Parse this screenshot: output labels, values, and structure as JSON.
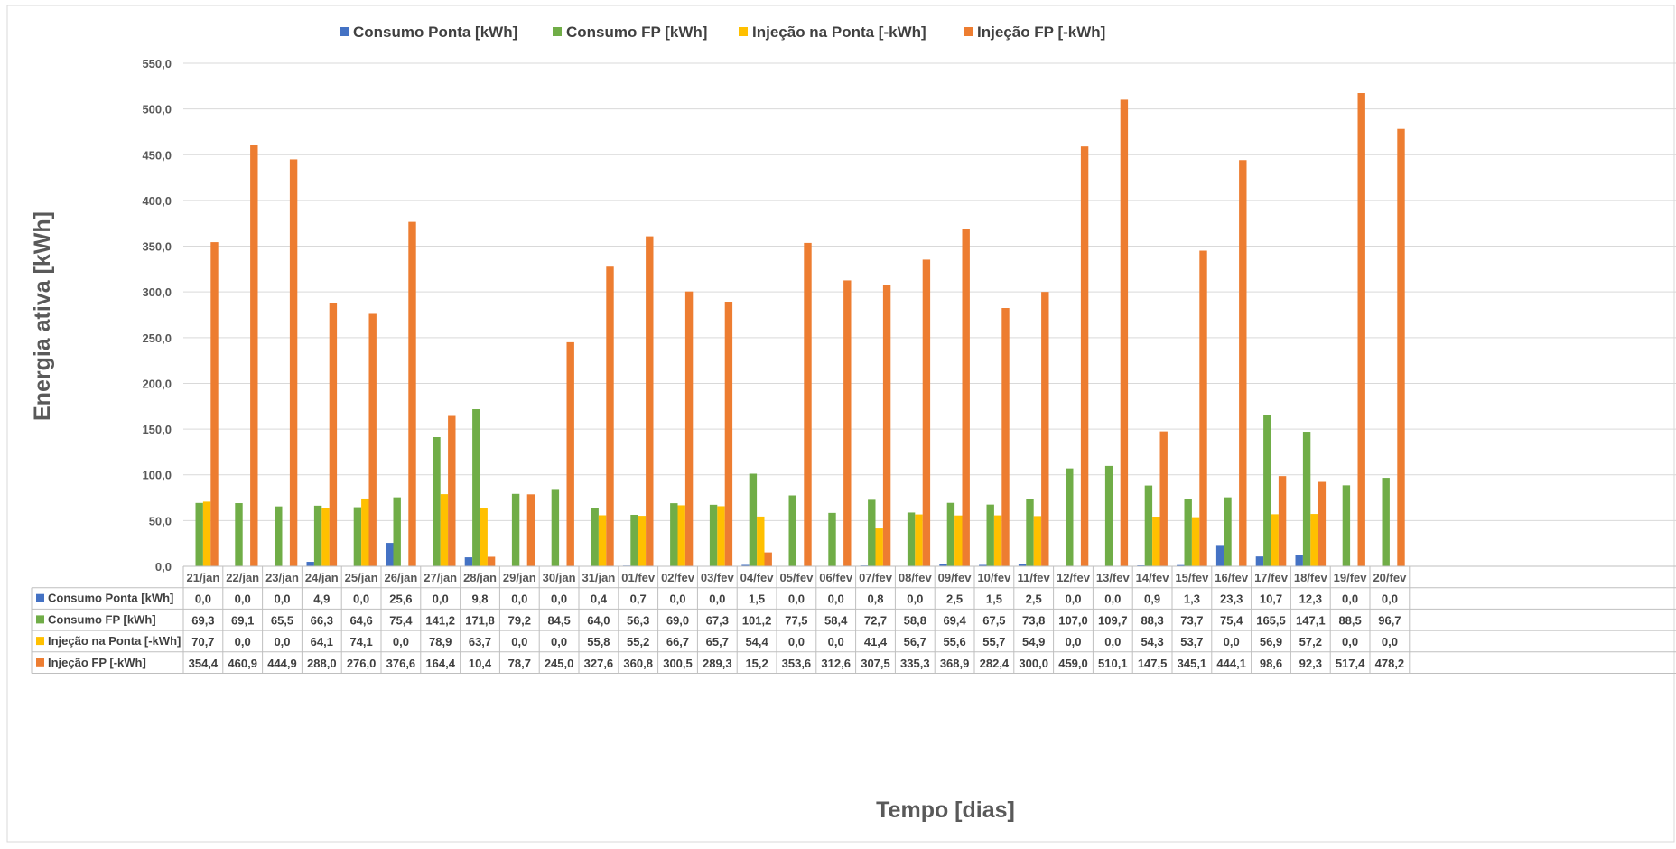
{
  "chart_data": {
    "type": "bar",
    "title": "",
    "xlabel": "Tempo [dias]",
    "ylabel": "Energia ativa [kWh]",
    "ylim": [
      0,
      550
    ],
    "yticks": [
      "0,0",
      "50,0",
      "100,0",
      "150,0",
      "200,0",
      "250,0",
      "300,0",
      "350,0",
      "400,0",
      "450,0",
      "500,0",
      "550,0"
    ],
    "grid": true,
    "legend_position": "top",
    "data_table": true,
    "categories": [
      "21/jan",
      "22/jan",
      "23/jan",
      "24/jan",
      "25/jan",
      "26/jan",
      "27/jan",
      "28/jan",
      "29/jan",
      "30/jan",
      "31/jan",
      "01/fev",
      "02/fev",
      "03/fev",
      "04/fev",
      "05/fev",
      "06/fev",
      "07/fev",
      "08/fev",
      "09/fev",
      "10/fev",
      "11/fev",
      "12/fev",
      "13/fev",
      "14/fev",
      "15/fev",
      "16/fev",
      "17/fev",
      "18/fev",
      "19/fev",
      "20/fev"
    ],
    "series": [
      {
        "name": "Consumo Ponta [kWh]",
        "color": "#4472C4",
        "values": [
          0.0,
          0.0,
          0.0,
          4.9,
          0.0,
          25.6,
          0.0,
          9.8,
          0.0,
          0.0,
          0.4,
          0.7,
          0.0,
          0.0,
          1.5,
          0.0,
          0.0,
          0.8,
          0.0,
          2.5,
          1.5,
          2.5,
          0.0,
          0.0,
          0.9,
          1.3,
          23.3,
          10.7,
          12.3,
          0.0,
          0.0
        ],
        "labels": [
          "0,0",
          "0,0",
          "0,0",
          "4,9",
          "0,0",
          "25,6",
          "0,0",
          "9,8",
          "0,0",
          "0,0",
          "0,4",
          "0,7",
          "0,0",
          "0,0",
          "1,5",
          "0,0",
          "0,0",
          "0,8",
          "0,0",
          "2,5",
          "1,5",
          "2,5",
          "0,0",
          "0,0",
          "0,9",
          "1,3",
          "23,3",
          "10,7",
          "12,3",
          "0,0",
          "0,0"
        ]
      },
      {
        "name": "Consumo FP [kWh]",
        "color": "#70AD47",
        "values": [
          69.3,
          69.1,
          65.5,
          66.3,
          64.6,
          75.4,
          141.2,
          171.8,
          79.2,
          84.5,
          64.0,
          56.3,
          69.0,
          67.3,
          101.2,
          77.5,
          58.4,
          72.7,
          58.8,
          69.4,
          67.5,
          73.8,
          107.0,
          109.7,
          88.3,
          73.7,
          75.4,
          165.5,
          147.1,
          88.5,
          96.7
        ],
        "labels": [
          "69,3",
          "69,1",
          "65,5",
          "66,3",
          "64,6",
          "75,4",
          "141,2",
          "171,8",
          "79,2",
          "84,5",
          "64,0",
          "56,3",
          "69,0",
          "67,3",
          "101,2",
          "77,5",
          "58,4",
          "72,7",
          "58,8",
          "69,4",
          "67,5",
          "73,8",
          "107,0",
          "109,7",
          "88,3",
          "73,7",
          "75,4",
          "165,5",
          "147,1",
          "88,5",
          "96,7"
        ]
      },
      {
        "name": "Injeção na Ponta [-kWh]",
        "color": "#FFC000",
        "values": [
          70.7,
          0.0,
          0.0,
          64.1,
          74.1,
          0.0,
          78.9,
          63.7,
          0.0,
          0.0,
          55.8,
          55.2,
          66.7,
          65.7,
          54.4,
          0.0,
          0.0,
          41.4,
          56.7,
          55.6,
          55.7,
          54.9,
          0.0,
          0.0,
          54.3,
          53.7,
          0.0,
          56.9,
          57.2,
          0.0,
          0.0
        ],
        "labels": [
          "70,7",
          "0,0",
          "0,0",
          "64,1",
          "74,1",
          "0,0",
          "78,9",
          "63,7",
          "0,0",
          "0,0",
          "55,8",
          "55,2",
          "66,7",
          "65,7",
          "54,4",
          "0,0",
          "0,0",
          "41,4",
          "56,7",
          "55,6",
          "55,7",
          "54,9",
          "0,0",
          "0,0",
          "54,3",
          "53,7",
          "0,0",
          "56,9",
          "57,2",
          "0,0",
          "0,0"
        ]
      },
      {
        "name": "Injeção FP [-kWh]",
        "color": "#ED7D31",
        "values": [
          354.4,
          460.9,
          444.9,
          288.0,
          276.0,
          376.6,
          164.4,
          10.4,
          78.7,
          245.0,
          327.6,
          360.8,
          300.5,
          289.3,
          15.2,
          353.6,
          312.6,
          307.5,
          335.3,
          368.9,
          282.4,
          300.0,
          459.0,
          510.1,
          147.5,
          345.1,
          444.1,
          98.6,
          92.3,
          517.4,
          478.2
        ],
        "labels": [
          "354,4",
          "460,9",
          "444,9",
          "288,0",
          "276,0",
          "376,6",
          "164,4",
          "10,4",
          "78,7",
          "245,0",
          "327,6",
          "360,8",
          "300,5",
          "289,3",
          "15,2",
          "353,6",
          "312,6",
          "307,5",
          "335,3",
          "368,9",
          "282,4",
          "300,0",
          "459,0",
          "510,1",
          "147,5",
          "345,1",
          "444,1",
          "98,6",
          "92,3",
          "517,4",
          "478,2"
        ]
      }
    ]
  }
}
